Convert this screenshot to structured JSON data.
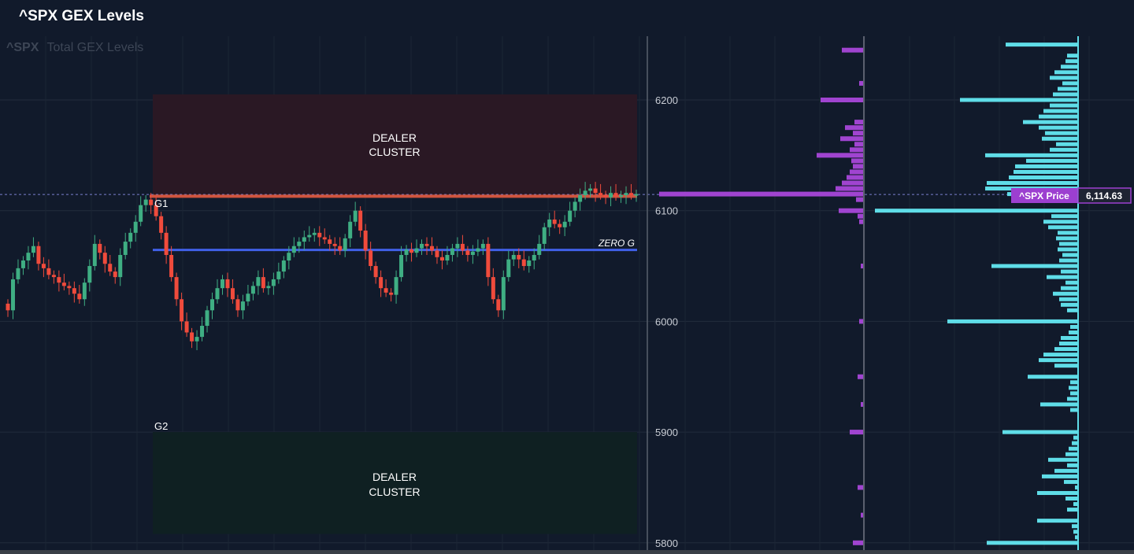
{
  "header": {
    "title": "^SPX GEX Levels"
  },
  "chart": {
    "watermark_symbol": "^SPX",
    "watermark_text": "Total GEX Levels",
    "zones": {
      "upper_label_line1": "DEALER",
      "upper_label_line2": "CLUSTER",
      "lower_label_line1": "DEALER",
      "lower_label_line2": "CLUSTER",
      "upper_range": [
        6112,
        6205
      ],
      "lower_range": [
        5808,
        5900
      ]
    },
    "levels": {
      "g1_label": "G1",
      "g1_value": 6113,
      "g2_label": "G2",
      "g2_value": 5900,
      "zero_g_label": "ZERO G",
      "zero_g_value": 6064.5
    },
    "price_badge": {
      "label": "^SPX Price",
      "value": "6,114.63"
    },
    "colors": {
      "background": "#111a2b",
      "up_candle": "#3fae83",
      "down_candle": "#f04b3c",
      "zero_g": "#4060e8",
      "g1_line": "#d0543e",
      "upper_zone": "#2a1824",
      "lower_zone": "#0f2022",
      "purple": "#a044d0",
      "cyan": "#5fdde8"
    }
  },
  "chart_data": {
    "type": "candlestick + horizontal bar",
    "y_axis": {
      "ticks": [
        5800,
        5900,
        6000,
        6100,
        6200
      ],
      "ylim": [
        5793,
        6250
      ]
    },
    "price_closes": [
      6010,
      6038,
      6048,
      6055,
      6062,
      6068,
      6052,
      6048,
      6042,
      6040,
      6035,
      6032,
      6030,
      6025,
      6020,
      6035,
      6050,
      6070,
      6062,
      6052,
      6045,
      6040,
      6060,
      6072,
      6080,
      6090,
      6105,
      6110,
      6105,
      6095,
      6080,
      6060,
      6040,
      6020,
      6000,
      5990,
      5982,
      5986,
      5996,
      6010,
      6020,
      6030,
      6038,
      6030,
      6020,
      6010,
      6018,
      6025,
      6032,
      6040,
      6030,
      6032,
      6038,
      6045,
      6055,
      6062,
      6068,
      6072,
      6076,
      6078,
      6080,
      6076,
      6074,
      6070,
      6068,
      6064,
      6075,
      6090,
      6100,
      6082,
      6064,
      6050,
      6040,
      6030,
      6026,
      6024,
      6040,
      6060,
      6065,
      6062,
      6066,
      6070,
      6068,
      6064,
      6058,
      6055,
      6060,
      6066,
      6070,
      6064,
      6060,
      6063,
      6066,
      6070,
      6040,
      6020,
      6010,
      6040,
      6056,
      6060,
      6056,
      6050,
      6055,
      6060,
      6070,
      6085,
      6092,
      6088,
      6085,
      6090,
      6100,
      6108,
      6114,
      6118,
      6120,
      6116,
      6114,
      6112,
      6116,
      6113,
      6114,
      6116,
      6114,
      6115
    ],
    "gex_purple": [
      {
        "strike": 6245,
        "value": -28
      },
      {
        "strike": 6215,
        "value": -6
      },
      {
        "strike": 6200,
        "value": -55
      },
      {
        "strike": 6180,
        "value": -12
      },
      {
        "strike": 6175,
        "value": -24
      },
      {
        "strike": 6170,
        "value": -14
      },
      {
        "strike": 6165,
        "value": -30
      },
      {
        "strike": 6160,
        "value": -12
      },
      {
        "strike": 6155,
        "value": -18
      },
      {
        "strike": 6150,
        "value": -60
      },
      {
        "strike": 6145,
        "value": -16
      },
      {
        "strike": 6140,
        "value": -14
      },
      {
        "strike": 6135,
        "value": -18
      },
      {
        "strike": 6130,
        "value": -22
      },
      {
        "strike": 6125,
        "value": -28
      },
      {
        "strike": 6120,
        "value": -36
      },
      {
        "strike": 6115,
        "value": -260
      },
      {
        "strike": 6110,
        "value": -10
      },
      {
        "strike": 6100,
        "value": -32
      },
      {
        "strike": 6095,
        "value": -8
      },
      {
        "strike": 6090,
        "value": -6
      },
      {
        "strike": 6050,
        "value": -4
      },
      {
        "strike": 6000,
        "value": -6
      },
      {
        "strike": 5950,
        "value": -8
      },
      {
        "strike": 5925,
        "value": -4
      },
      {
        "strike": 5900,
        "value": -18
      },
      {
        "strike": 5850,
        "value": -8
      },
      {
        "strike": 5825,
        "value": -4
      },
      {
        "strike": 5800,
        "value": -14
      }
    ],
    "gex_cyan": [
      {
        "strike": 6250,
        "value": -92
      },
      {
        "strike": 6240,
        "value": -14
      },
      {
        "strike": 6235,
        "value": -16
      },
      {
        "strike": 6230,
        "value": -22
      },
      {
        "strike": 6225,
        "value": -30
      },
      {
        "strike": 6220,
        "value": -36
      },
      {
        "strike": 6215,
        "value": -20
      },
      {
        "strike": 6210,
        "value": -26
      },
      {
        "strike": 6205,
        "value": -32
      },
      {
        "strike": 6200,
        "value": -150
      },
      {
        "strike": 6195,
        "value": -36
      },
      {
        "strike": 6190,
        "value": -44
      },
      {
        "strike": 6185,
        "value": -50
      },
      {
        "strike": 6180,
        "value": -70
      },
      {
        "strike": 6175,
        "value": -50
      },
      {
        "strike": 6170,
        "value": -42
      },
      {
        "strike": 6165,
        "value": -46
      },
      {
        "strike": 6160,
        "value": -28
      },
      {
        "strike": 6155,
        "value": -36
      },
      {
        "strike": 6150,
        "value": -118
      },
      {
        "strike": 6145,
        "value": -66
      },
      {
        "strike": 6140,
        "value": -80
      },
      {
        "strike": 6135,
        "value": -82
      },
      {
        "strike": 6130,
        "value": -88
      },
      {
        "strike": 6125,
        "value": -116
      },
      {
        "strike": 6120,
        "value": -118
      },
      {
        "strike": 6115,
        "value": -90
      },
      {
        "strike": 6110,
        "value": -80
      },
      {
        "strike": 6100,
        "value": -258
      },
      {
        "strike": 6095,
        "value": -34
      },
      {
        "strike": 6090,
        "value": -44
      },
      {
        "strike": 6085,
        "value": -38
      },
      {
        "strike": 6080,
        "value": -26
      },
      {
        "strike": 6075,
        "value": -28
      },
      {
        "strike": 6070,
        "value": -24
      },
      {
        "strike": 6065,
        "value": -26
      },
      {
        "strike": 6060,
        "value": -20
      },
      {
        "strike": 6055,
        "value": -24
      },
      {
        "strike": 6050,
        "value": -110
      },
      {
        "strike": 6045,
        "value": -22
      },
      {
        "strike": 6040,
        "value": -40
      },
      {
        "strike": 6035,
        "value": -16
      },
      {
        "strike": 6030,
        "value": -22
      },
      {
        "strike": 6025,
        "value": -32
      },
      {
        "strike": 6020,
        "value": -24
      },
      {
        "strike": 6015,
        "value": -22
      },
      {
        "strike": 6010,
        "value": -14
      },
      {
        "strike": 6000,
        "value": -166
      },
      {
        "strike": 5995,
        "value": -10
      },
      {
        "strike": 5990,
        "value": -12
      },
      {
        "strike": 5985,
        "value": -22
      },
      {
        "strike": 5980,
        "value": -24
      },
      {
        "strike": 5975,
        "value": -30
      },
      {
        "strike": 5970,
        "value": -44
      },
      {
        "strike": 5965,
        "value": -50
      },
      {
        "strike": 5960,
        "value": -30
      },
      {
        "strike": 5950,
        "value": -64
      },
      {
        "strike": 5945,
        "value": -10
      },
      {
        "strike": 5940,
        "value": -12
      },
      {
        "strike": 5935,
        "value": -10
      },
      {
        "strike": 5930,
        "value": -14
      },
      {
        "strike": 5925,
        "value": -48
      },
      {
        "strike": 5920,
        "value": -10
      },
      {
        "strike": 5900,
        "value": -96
      },
      {
        "strike": 5895,
        "value": -6
      },
      {
        "strike": 5890,
        "value": -8
      },
      {
        "strike": 5885,
        "value": -12
      },
      {
        "strike": 5880,
        "value": -16
      },
      {
        "strike": 5875,
        "value": -38
      },
      {
        "strike": 5870,
        "value": -14
      },
      {
        "strike": 5865,
        "value": -30
      },
      {
        "strike": 5860,
        "value": -46
      },
      {
        "strike": 5855,
        "value": -18
      },
      {
        "strike": 5850,
        "value": -4
      },
      {
        "strike": 5845,
        "value": -52
      },
      {
        "strike": 5840,
        "value": -16
      },
      {
        "strike": 5835,
        "value": -6
      },
      {
        "strike": 5830,
        "value": -14
      },
      {
        "strike": 5820,
        "value": -52
      },
      {
        "strike": 5815,
        "value": -8
      },
      {
        "strike": 5810,
        "value": -6
      },
      {
        "strike": 5805,
        "value": -4
      },
      {
        "strike": 5800,
        "value": -116
      }
    ]
  }
}
